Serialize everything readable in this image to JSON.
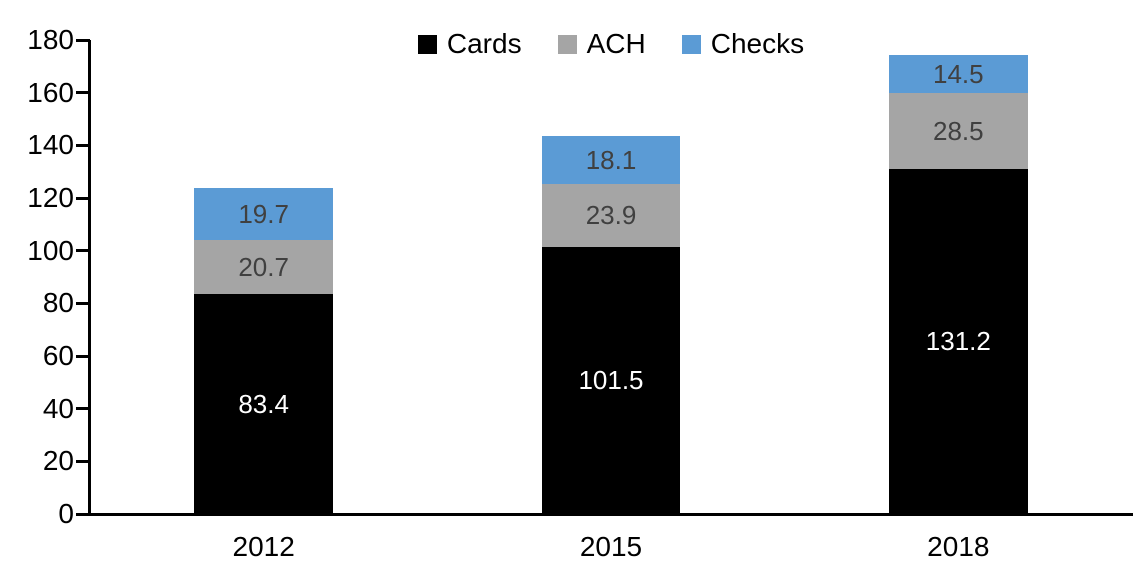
{
  "chart_data": {
    "type": "bar",
    "stacked": true,
    "title": "",
    "xlabel": "",
    "ylabel": "",
    "categories": [
      "2012",
      "2015",
      "2018"
    ],
    "series": [
      {
        "name": "Cards",
        "color": "#000000",
        "label_color": "#ffffff",
        "values": [
          83.4,
          101.5,
          131.2
        ]
      },
      {
        "name": "ACH",
        "color": "#a5a5a5",
        "label_color": "#404040",
        "values": [
          20.7,
          23.9,
          28.5
        ]
      },
      {
        "name": "Checks",
        "color": "#5b9bd5",
        "label_color": "#404040",
        "values": [
          19.7,
          18.1,
          14.5
        ]
      }
    ],
    "totals": [
      123.8,
      143.5,
      174.2
    ],
    "ylim": [
      0,
      180
    ],
    "yticks": [
      0,
      20,
      40,
      60,
      80,
      100,
      120,
      140,
      160,
      180
    ],
    "grid": false,
    "legend_position": "top-center",
    "axis_color": "#000000",
    "background_color": "#ffffff"
  }
}
